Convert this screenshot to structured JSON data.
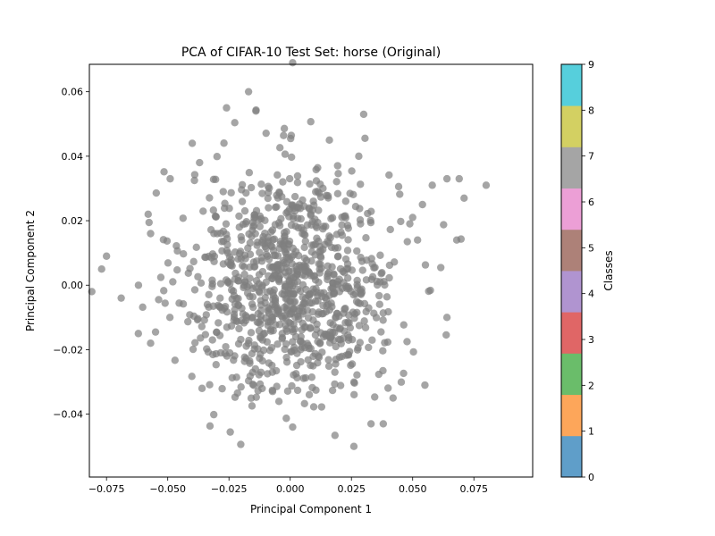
{
  "chart_data": {
    "type": "scatter",
    "title": "PCA of CIFAR-10 Test Set: horse (Original)",
    "xlabel": "Principal Component 1",
    "ylabel": "Principal Component 2",
    "xlim": [
      -0.082,
      0.099
    ],
    "ylim": [
      -0.0595,
      0.0685
    ],
    "x_ticks": [
      -0.075,
      -0.05,
      -0.025,
      0.0,
      0.025,
      0.05,
      0.075
    ],
    "x_tick_labels": [
      "−0.075",
      "−0.050",
      "−0.025",
      "0.000",
      "0.025",
      "0.050",
      "0.075"
    ],
    "y_ticks": [
      -0.04,
      -0.02,
      0.0,
      0.02,
      0.04,
      0.06
    ],
    "y_tick_labels": [
      "−0.04",
      "−0.02",
      "0.00",
      "0.02",
      "0.04",
      "0.06"
    ],
    "grid": false,
    "point_color": "#7f7f7f",
    "point_alpha": 0.7,
    "n_points": 1000,
    "sample_points": [
      [
        0.001,
        0.069
      ],
      [
        -0.017,
        0.06
      ],
      [
        -0.026,
        0.055
      ],
      [
        -0.014,
        0.054
      ],
      [
        0.03,
        0.053
      ],
      [
        0.08,
        0.031
      ],
      [
        0.069,
        0.033
      ],
      [
        0.064,
        0.033
      ],
      [
        0.071,
        0.027
      ],
      [
        -0.081,
        -0.002
      ],
      [
        -0.075,
        0.009
      ],
      [
        -0.077,
        0.005
      ],
      [
        -0.069,
        -0.004
      ],
      [
        -0.062,
        -0.015
      ],
      [
        -0.057,
        -0.018
      ],
      [
        -0.036,
        -0.032
      ],
      [
        0.026,
        -0.05
      ],
      [
        0.001,
        -0.044
      ],
      [
        0.033,
        -0.043
      ],
      [
        0.038,
        -0.043
      ],
      [
        0.064,
        -0.01
      ],
      [
        0.055,
        -0.031
      ],
      [
        0.042,
        -0.035
      ],
      [
        0.028,
        0.04
      ],
      [
        -0.04,
        0.044
      ],
      [
        0.016,
        0.045
      ],
      [
        -0.037,
        0.038
      ],
      [
        0.054,
        0.025
      ],
      [
        0.05,
        0.021
      ],
      [
        -0.058,
        0.022
      ],
      [
        -0.049,
        0.033
      ],
      [
        0.058,
        0.031
      ],
      [
        0.068,
        0.014
      ],
      [
        -0.057,
        0.016
      ],
      [
        0.052,
        0.014
      ]
    ],
    "colorbar": {
      "label": "Classes",
      "ticks": [
        0,
        1,
        2,
        3,
        4,
        5,
        6,
        7,
        8,
        9
      ],
      "tick_labels": [
        "0",
        "1",
        "2",
        "3",
        "4",
        "5",
        "6",
        "7",
        "8",
        "9"
      ],
      "range": [
        0,
        9
      ],
      "colors": [
        "#5f9ec9",
        "#fda65a",
        "#6abd6a",
        "#e06666",
        "#b094d0",
        "#ad8178",
        "#ec9fd6",
        "#a5a5a5",
        "#d3d062",
        "#56cfdc"
      ]
    }
  }
}
